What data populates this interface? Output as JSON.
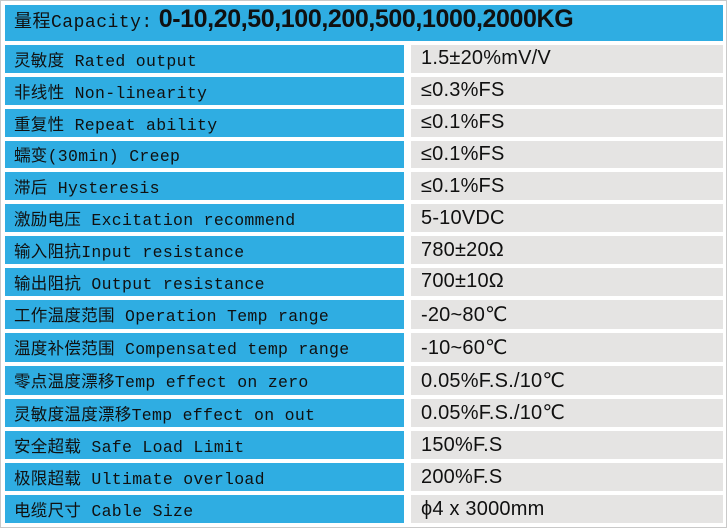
{
  "colors": {
    "header_bg": "#2fade2",
    "label_bg": "#2fade2",
    "value_bg": "#e5e4e3",
    "text": "#101010",
    "page_bg": "#ffffff",
    "outer_border": "#c9c9c9"
  },
  "header": {
    "label": "量程Capacity:",
    "value": "0-10,20,50,100,200,500,1000,2000KG"
  },
  "rows": [
    {
      "label": "灵敏度 Rated output",
      "value": "1.5±20%mV/V"
    },
    {
      "label": "非线性 Non-linearity",
      "value": "≤0.3%FS"
    },
    {
      "label": "重复性 Repeat ability",
      "value": "≤0.1%FS"
    },
    {
      "label": "蠕变(30min) Creep",
      "value": "≤0.1%FS"
    },
    {
      "label": "滞后 Hysteresis",
      "value": "≤0.1%FS"
    },
    {
      "label": "激励电压 Excitation recommend",
      "value": "5-10VDC"
    },
    {
      "label": "输入阻抗Input resistance",
      "value": "780±20Ω"
    },
    {
      "label": "输出阻抗 Output resistance",
      "value": "700±10Ω"
    },
    {
      "label": "工作温度范围 Operation Temp range",
      "value": "-20~80℃"
    },
    {
      "label": "温度补偿范围 Compensated temp range",
      "value": "-10~60℃"
    },
    {
      "label": "零点温度漂移Temp effect on zero",
      "value": "0.05%F.S./10℃"
    },
    {
      "label": "灵敏度温度漂移Temp effect on out",
      "value": "0.05%F.S./10℃"
    },
    {
      "label": "安全超载 Safe Load Limit",
      "value": "150%F.S"
    },
    {
      "label": "极限超载 Ultimate overload",
      "value": "200%F.S"
    },
    {
      "label": "电缆尺寸 Cable Size",
      "value": "ϕ4 x 3000mm"
    }
  ]
}
